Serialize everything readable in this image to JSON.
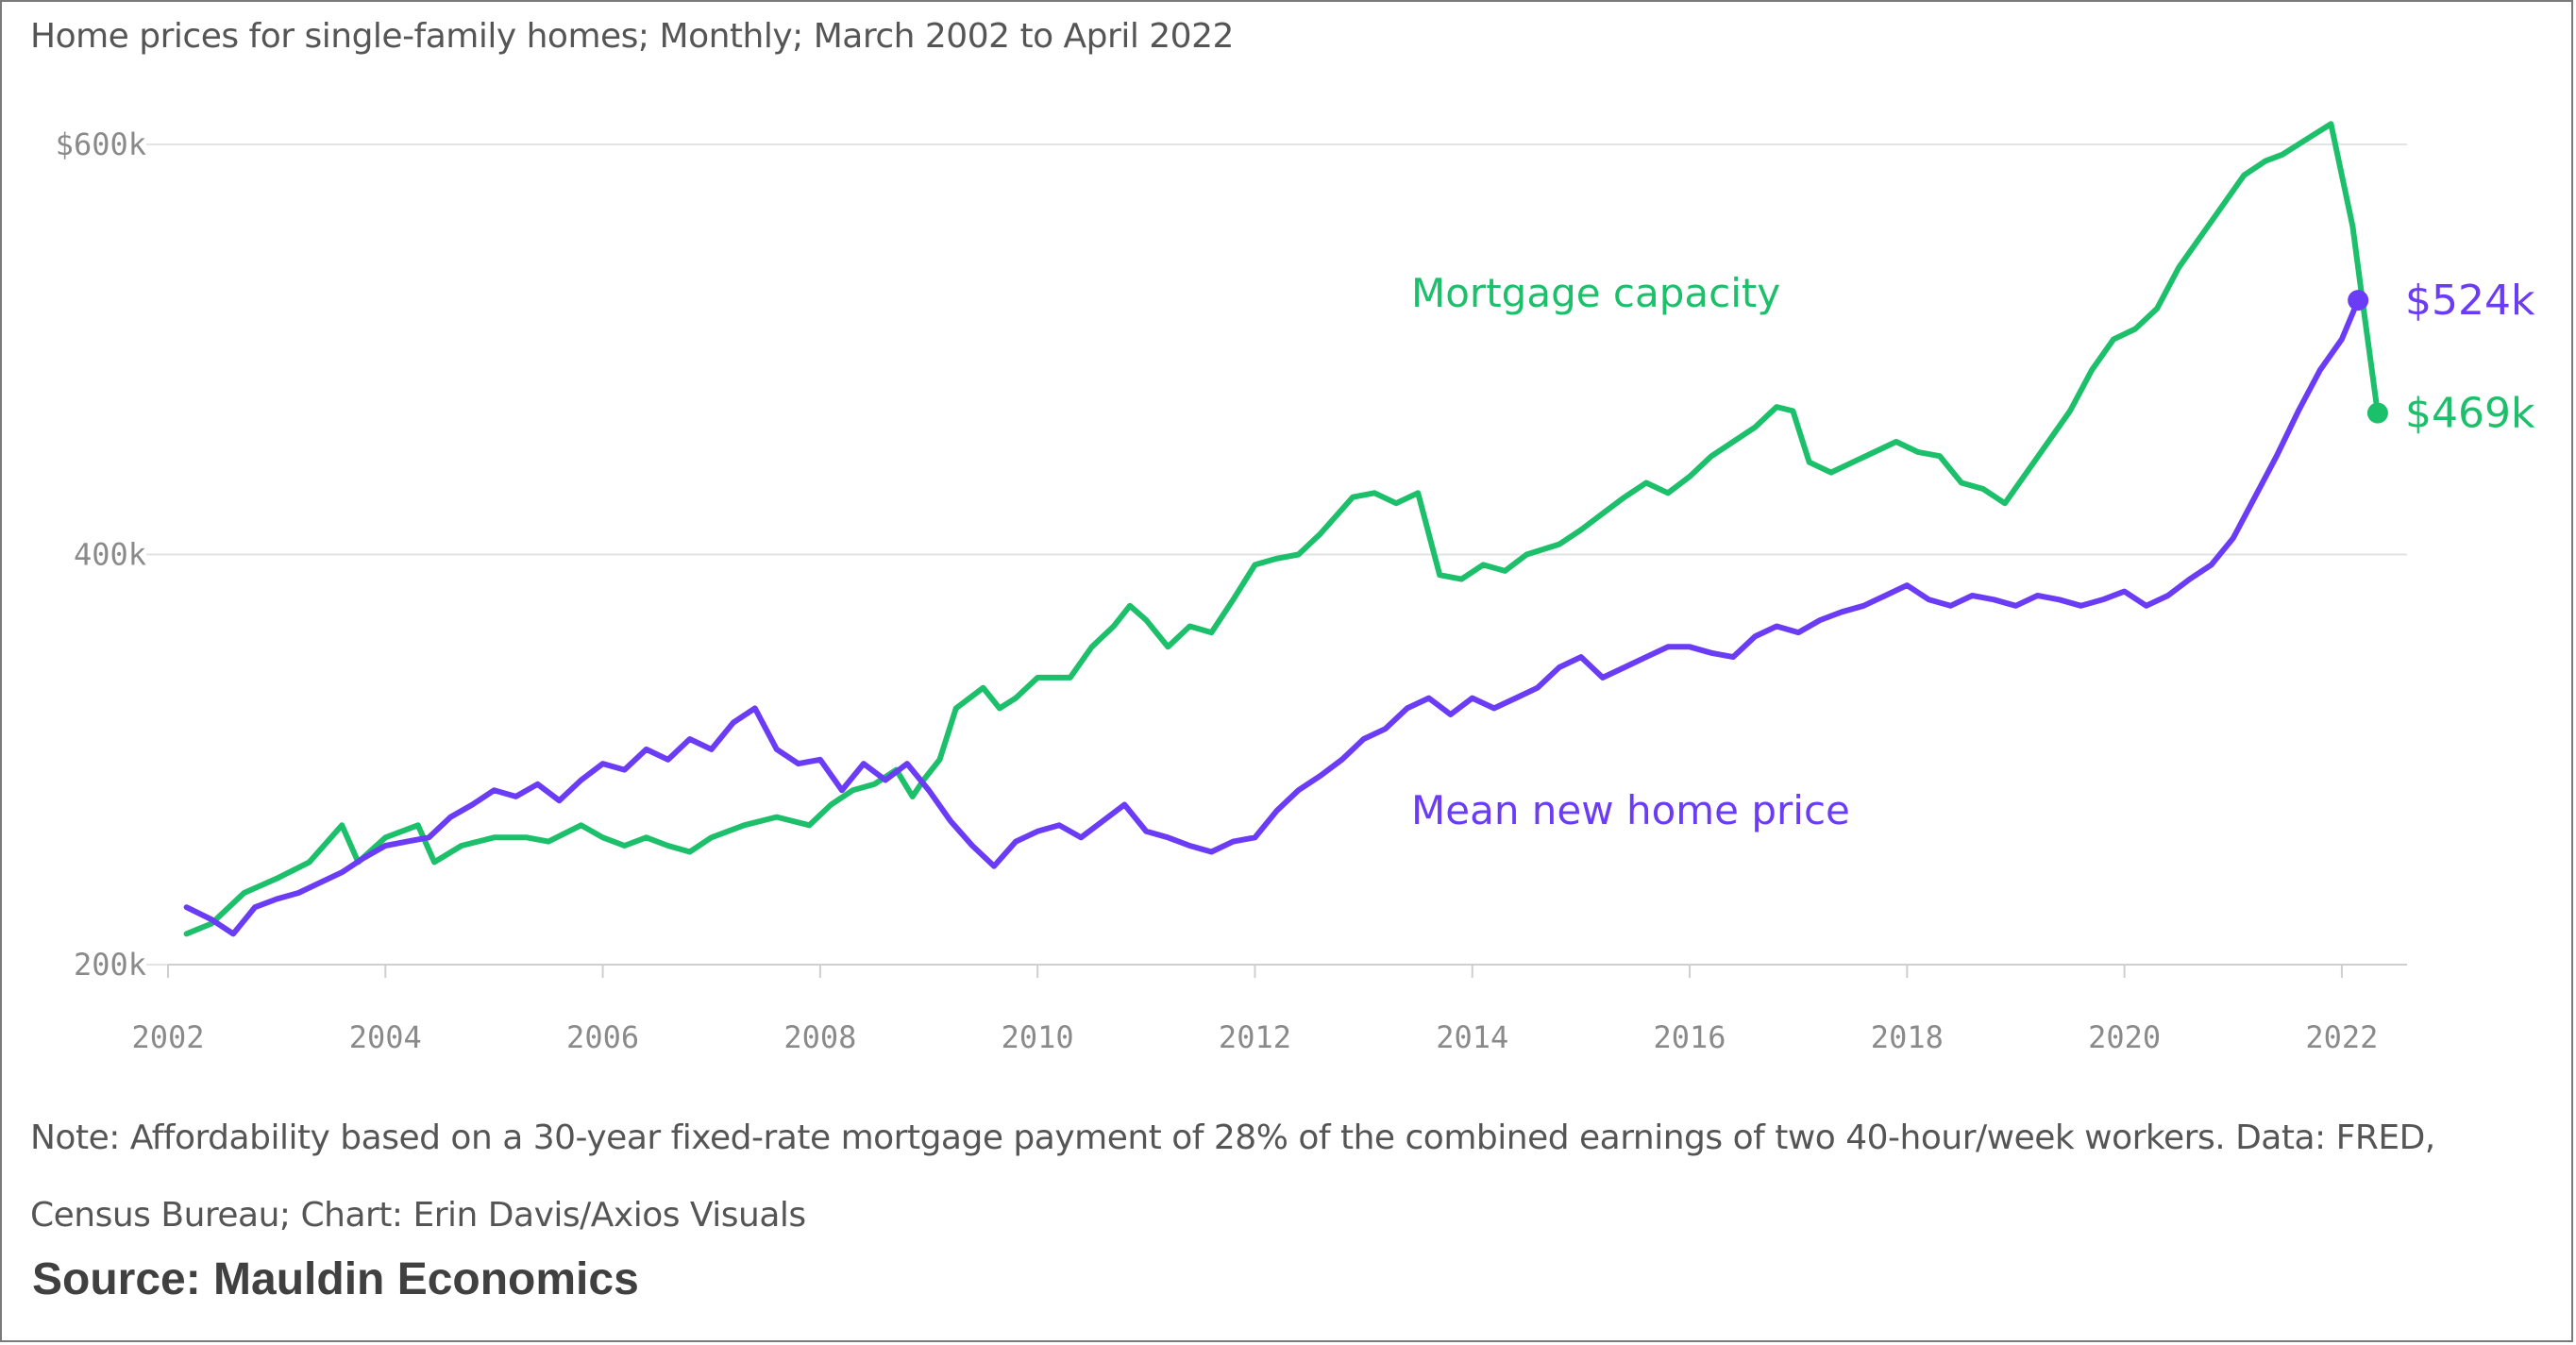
{
  "subtitle": "Home prices for single-family homes; Monthly; March 2002 to April 2022",
  "note_line1": "Note: Affordability based on a 30-year fixed-rate mortgage payment of 28% of the combined earnings of two 40-hour/week workers. Data: FRED,",
  "note_line2": "Census Bureau; Chart: Erin Davis/Axios Visuals",
  "source": "Source: Mauldin Economics",
  "chart_data": {
    "type": "line",
    "title": "",
    "xlabel": "",
    "ylabel": "",
    "xlim": [
      2002,
      2022.6
    ],
    "ylim": [
      200,
      600
    ],
    "x_ticks": [
      {
        "value": 2002,
        "label": "2002"
      },
      {
        "value": 2004,
        "label": "2004"
      },
      {
        "value": 2006,
        "label": "2006"
      },
      {
        "value": 2008,
        "label": "2008"
      },
      {
        "value": 2010,
        "label": "2010"
      },
      {
        "value": 2012,
        "label": "2012"
      },
      {
        "value": 2014,
        "label": "2014"
      },
      {
        "value": 2016,
        "label": "2016"
      },
      {
        "value": 2018,
        "label": "2018"
      },
      {
        "value": 2020,
        "label": "2020"
      },
      {
        "value": 2022,
        "label": "2022"
      }
    ],
    "y_ticks": [
      {
        "value": 600,
        "label": "$600k"
      },
      {
        "value": 400,
        "label": "400k"
      },
      {
        "value": 200,
        "label": "200k"
      }
    ],
    "grid": true,
    "series": [
      {
        "name": "Mortgage capacity",
        "color": "#1cbf6a",
        "end_label": "$469k",
        "end_value": 469,
        "points": [
          [
            2002.17,
            215
          ],
          [
            2002.4,
            220
          ],
          [
            2002.7,
            235
          ],
          [
            2003.0,
            242
          ],
          [
            2003.3,
            250
          ],
          [
            2003.6,
            268
          ],
          [
            2003.75,
            250
          ],
          [
            2004.0,
            262
          ],
          [
            2004.3,
            268
          ],
          [
            2004.45,
            250
          ],
          [
            2004.7,
            258
          ],
          [
            2005.0,
            262
          ],
          [
            2005.3,
            262
          ],
          [
            2005.5,
            260
          ],
          [
            2005.8,
            268
          ],
          [
            2006.0,
            262
          ],
          [
            2006.2,
            258
          ],
          [
            2006.4,
            262
          ],
          [
            2006.6,
            258
          ],
          [
            2006.8,
            255
          ],
          [
            2007.0,
            262
          ],
          [
            2007.3,
            268
          ],
          [
            2007.6,
            272
          ],
          [
            2007.9,
            268
          ],
          [
            2008.1,
            278
          ],
          [
            2008.3,
            285
          ],
          [
            2008.5,
            288
          ],
          [
            2008.7,
            295
          ],
          [
            2008.85,
            282
          ],
          [
            2008.95,
            290
          ],
          [
            2009.1,
            300
          ],
          [
            2009.25,
            325
          ],
          [
            2009.5,
            335
          ],
          [
            2009.65,
            325
          ],
          [
            2009.8,
            330
          ],
          [
            2010.0,
            340
          ],
          [
            2010.3,
            340
          ],
          [
            2010.5,
            355
          ],
          [
            2010.7,
            365
          ],
          [
            2010.85,
            375
          ],
          [
            2011.0,
            368
          ],
          [
            2011.2,
            355
          ],
          [
            2011.4,
            365
          ],
          [
            2011.6,
            362
          ],
          [
            2011.8,
            378
          ],
          [
            2012.0,
            395
          ],
          [
            2012.2,
            398
          ],
          [
            2012.4,
            400
          ],
          [
            2012.6,
            410
          ],
          [
            2012.9,
            428
          ],
          [
            2013.1,
            430
          ],
          [
            2013.3,
            425
          ],
          [
            2013.5,
            430
          ],
          [
            2013.7,
            390
          ],
          [
            2013.9,
            388
          ],
          [
            2014.1,
            395
          ],
          [
            2014.3,
            392
          ],
          [
            2014.5,
            400
          ],
          [
            2014.8,
            405
          ],
          [
            2015.0,
            412
          ],
          [
            2015.2,
            420
          ],
          [
            2015.4,
            428
          ],
          [
            2015.6,
            435
          ],
          [
            2015.8,
            430
          ],
          [
            2016.0,
            438
          ],
          [
            2016.2,
            448
          ],
          [
            2016.4,
            455
          ],
          [
            2016.6,
            462
          ],
          [
            2016.8,
            472
          ],
          [
            2016.95,
            470
          ],
          [
            2017.1,
            445
          ],
          [
            2017.3,
            440
          ],
          [
            2017.5,
            445
          ],
          [
            2017.7,
            450
          ],
          [
            2017.9,
            455
          ],
          [
            2018.1,
            450
          ],
          [
            2018.3,
            448
          ],
          [
            2018.5,
            435
          ],
          [
            2018.7,
            432
          ],
          [
            2018.9,
            425
          ],
          [
            2019.1,
            440
          ],
          [
            2019.3,
            455
          ],
          [
            2019.5,
            470
          ],
          [
            2019.7,
            490
          ],
          [
            2019.9,
            505
          ],
          [
            2020.1,
            510
          ],
          [
            2020.3,
            520
          ],
          [
            2020.5,
            540
          ],
          [
            2020.7,
            555
          ],
          [
            2020.9,
            570
          ],
          [
            2021.1,
            585
          ],
          [
            2021.3,
            592
          ],
          [
            2021.45,
            595
          ],
          [
            2021.6,
            600
          ],
          [
            2021.75,
            605
          ],
          [
            2021.9,
            610
          ],
          [
            2022.0,
            585
          ],
          [
            2022.1,
            560
          ],
          [
            2022.2,
            520
          ],
          [
            2022.33,
            469
          ]
        ]
      },
      {
        "name": "Mean new home price",
        "color": "#6b3cf5",
        "end_label": "$524k",
        "end_value": 524,
        "points": [
          [
            2002.17,
            228
          ],
          [
            2002.4,
            222
          ],
          [
            2002.6,
            215
          ],
          [
            2002.8,
            228
          ],
          [
            2003.0,
            232
          ],
          [
            2003.2,
            235
          ],
          [
            2003.4,
            240
          ],
          [
            2003.6,
            245
          ],
          [
            2003.8,
            252
          ],
          [
            2004.0,
            258
          ],
          [
            2004.2,
            260
          ],
          [
            2004.4,
            262
          ],
          [
            2004.6,
            272
          ],
          [
            2004.8,
            278
          ],
          [
            2005.0,
            285
          ],
          [
            2005.2,
            282
          ],
          [
            2005.4,
            288
          ],
          [
            2005.6,
            280
          ],
          [
            2005.8,
            290
          ],
          [
            2006.0,
            298
          ],
          [
            2006.2,
            295
          ],
          [
            2006.4,
            305
          ],
          [
            2006.6,
            300
          ],
          [
            2006.8,
            310
          ],
          [
            2007.0,
            305
          ],
          [
            2007.2,
            318
          ],
          [
            2007.4,
            325
          ],
          [
            2007.6,
            305
          ],
          [
            2007.8,
            298
          ],
          [
            2008.0,
            300
          ],
          [
            2008.2,
            285
          ],
          [
            2008.4,
            298
          ],
          [
            2008.6,
            290
          ],
          [
            2008.8,
            298
          ],
          [
            2009.0,
            285
          ],
          [
            2009.2,
            270
          ],
          [
            2009.4,
            258
          ],
          [
            2009.6,
            248
          ],
          [
            2009.8,
            260
          ],
          [
            2010.0,
            265
          ],
          [
            2010.2,
            268
          ],
          [
            2010.4,
            262
          ],
          [
            2010.6,
            270
          ],
          [
            2010.8,
            278
          ],
          [
            2011.0,
            265
          ],
          [
            2011.2,
            262
          ],
          [
            2011.4,
            258
          ],
          [
            2011.6,
            255
          ],
          [
            2011.8,
            260
          ],
          [
            2012.0,
            262
          ],
          [
            2012.2,
            275
          ],
          [
            2012.4,
            285
          ],
          [
            2012.6,
            292
          ],
          [
            2012.8,
            300
          ],
          [
            2013.0,
            310
          ],
          [
            2013.2,
            315
          ],
          [
            2013.4,
            325
          ],
          [
            2013.6,
            330
          ],
          [
            2013.8,
            322
          ],
          [
            2014.0,
            330
          ],
          [
            2014.2,
            325
          ],
          [
            2014.4,
            330
          ],
          [
            2014.6,
            335
          ],
          [
            2014.8,
            345
          ],
          [
            2015.0,
            350
          ],
          [
            2015.2,
            340
          ],
          [
            2015.4,
            345
          ],
          [
            2015.6,
            350
          ],
          [
            2015.8,
            355
          ],
          [
            2016.0,
            355
          ],
          [
            2016.2,
            352
          ],
          [
            2016.4,
            350
          ],
          [
            2016.6,
            360
          ],
          [
            2016.8,
            365
          ],
          [
            2017.0,
            362
          ],
          [
            2017.2,
            368
          ],
          [
            2017.4,
            372
          ],
          [
            2017.6,
            375
          ],
          [
            2017.8,
            380
          ],
          [
            2018.0,
            385
          ],
          [
            2018.2,
            378
          ],
          [
            2018.4,
            375
          ],
          [
            2018.6,
            380
          ],
          [
            2018.8,
            378
          ],
          [
            2019.0,
            375
          ],
          [
            2019.2,
            380
          ],
          [
            2019.4,
            378
          ],
          [
            2019.6,
            375
          ],
          [
            2019.8,
            378
          ],
          [
            2020.0,
            382
          ],
          [
            2020.2,
            375
          ],
          [
            2020.4,
            380
          ],
          [
            2020.6,
            388
          ],
          [
            2020.8,
            395
          ],
          [
            2021.0,
            408
          ],
          [
            2021.2,
            428
          ],
          [
            2021.4,
            448
          ],
          [
            2021.6,
            470
          ],
          [
            2021.8,
            490
          ],
          [
            2022.0,
            505
          ],
          [
            2022.15,
            524
          ]
        ]
      }
    ]
  }
}
